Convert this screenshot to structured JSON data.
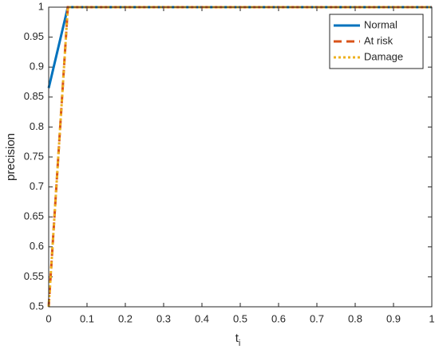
{
  "chart_data": {
    "type": "line",
    "x_label": "t",
    "x_label_subscript": "i",
    "y_label": "precision",
    "x": [
      0,
      0.05,
      1
    ],
    "series": [
      {
        "name": "Normal",
        "color": "#0072bd",
        "style": "solid",
        "values": [
          0.865,
          1,
          1
        ]
      },
      {
        "name": "At risk",
        "color": "#d95319",
        "style": "dashed",
        "values": [
          0.5,
          1,
          1
        ]
      },
      {
        "name": "Damage",
        "color": "#edb120",
        "style": "dotted",
        "values": [
          0.5,
          1,
          1
        ]
      }
    ],
    "xlim": [
      0,
      1
    ],
    "xticks": [
      0,
      0.1,
      0.2,
      0.3,
      0.4,
      0.5,
      0.6,
      0.7,
      0.8,
      0.9,
      1
    ],
    "ylim": [
      0.5,
      1
    ],
    "yticks": [
      0.5,
      0.55,
      0.6,
      0.65,
      0.7,
      0.75,
      0.8,
      0.85,
      0.9,
      0.95,
      1
    ],
    "legend": "top-right"
  }
}
